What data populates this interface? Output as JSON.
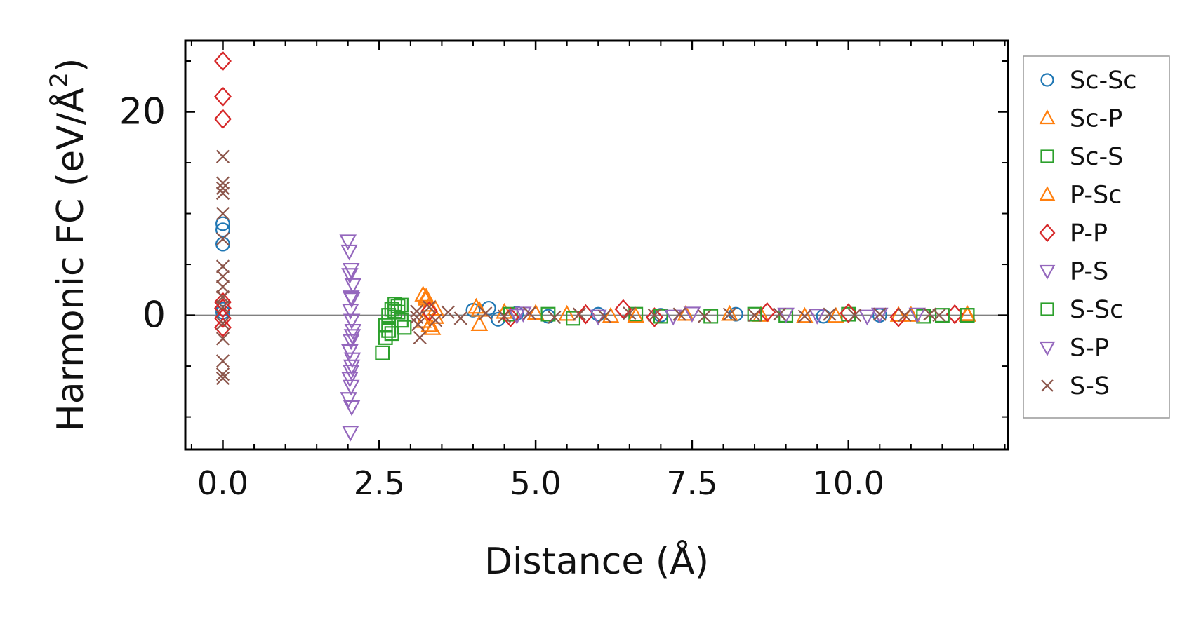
{
  "chart_data": {
    "type": "scatter",
    "title": "",
    "xlabel": "Distance (Å)",
    "ylabel_main": "Harmonic FC (eV/Å",
    "ylabel_sup": "2",
    "ylabel_end": ")",
    "xlim": [
      -0.6,
      12.55
    ],
    "ylim": [
      -13.2,
      27
    ],
    "xticks": [
      {
        "v": 0.0,
        "label": "0.0"
      },
      {
        "v": 2.5,
        "label": "2.5"
      },
      {
        "v": 5.0,
        "label": "5.0"
      },
      {
        "v": 7.5,
        "label": "7.5"
      },
      {
        "v": 10.0,
        "label": "10.0"
      }
    ],
    "xminor": [
      -0.5,
      0.5,
      1.0,
      1.5,
      2.0,
      3.0,
      3.5,
      4.0,
      4.5,
      5.5,
      6.0,
      6.5,
      7.0,
      8.0,
      8.5,
      9.0,
      9.5,
      10.5,
      11.0,
      11.5,
      12.0,
      12.5
    ],
    "yticks": [
      {
        "v": 0,
        "label": "0"
      },
      {
        "v": 20,
        "label": "20"
      }
    ],
    "yminor": [
      -10,
      -5,
      5,
      10,
      15,
      25
    ],
    "zero_line": true,
    "grid": false,
    "legend_position": "outside-right",
    "series": [
      {
        "name": "Sc-Sc",
        "marker": "circle",
        "color": "#1f77b4",
        "points": [
          [
            0,
            9.0
          ],
          [
            0,
            8.4
          ],
          [
            0,
            7.0
          ],
          [
            0,
            0.6
          ],
          [
            0,
            0.3
          ],
          [
            4.0,
            0.5
          ],
          [
            4.25,
            0.7
          ],
          [
            4.4,
            -0.4
          ],
          [
            4.7,
            0.2
          ],
          [
            5.2,
            -0.1
          ],
          [
            6.0,
            0.1
          ],
          [
            7.0,
            0.0
          ],
          [
            8.2,
            0.1
          ],
          [
            9.6,
            -0.1
          ],
          [
            10.5,
            0.0
          ]
        ]
      },
      {
        "name": "Sc-P",
        "marker": "triangle-up",
        "color": "#ff7f0e",
        "points": [
          [
            3.2,
            2.0
          ],
          [
            3.25,
            1.6
          ],
          [
            3.3,
            1.0
          ],
          [
            3.2,
            -0.6
          ],
          [
            3.35,
            -1.3
          ],
          [
            3.4,
            -0.2
          ],
          [
            4.1,
            0.5
          ],
          [
            4.1,
            -0.9
          ],
          [
            4.5,
            0.3
          ],
          [
            5.5,
            0.1
          ],
          [
            6.2,
            -0.1
          ],
          [
            7.4,
            0.1
          ],
          [
            8.6,
            0.0
          ],
          [
            9.8,
            -0.1
          ],
          [
            11.0,
            0.0
          ],
          [
            11.9,
            0.1
          ]
        ]
      },
      {
        "name": "Sc-S",
        "marker": "square",
        "color": "#2ca02c",
        "points": [
          [
            2.55,
            -3.7
          ],
          [
            2.6,
            -2.2
          ],
          [
            2.6,
            -1.0
          ],
          [
            2.65,
            0.0
          ],
          [
            2.7,
            0.6
          ],
          [
            2.75,
            1.1
          ],
          [
            2.8,
            0.9
          ],
          [
            2.85,
            -0.5
          ],
          [
            2.9,
            -1.2
          ],
          [
            2.7,
            -1.8
          ],
          [
            2.8,
            0.3
          ],
          [
            4.6,
            0.1
          ],
          [
            5.6,
            -0.3
          ],
          [
            6.6,
            0.1
          ],
          [
            7.8,
            -0.1
          ],
          [
            9.0,
            0.0
          ],
          [
            10.0,
            0.1
          ],
          [
            11.2,
            -0.1
          ],
          [
            11.9,
            0.0
          ]
        ]
      },
      {
        "name": "P-Sc",
        "marker": "triangle-up",
        "color": "#ff7f0e",
        "points": [
          [
            3.25,
            1.8
          ],
          [
            3.3,
            -1.0
          ],
          [
            3.4,
            0.6
          ],
          [
            4.05,
            0.8
          ],
          [
            5.0,
            0.2
          ],
          [
            6.6,
            -0.1
          ],
          [
            8.1,
            0.1
          ],
          [
            9.3,
            -0.1
          ],
          [
            10.8,
            0.0
          ],
          [
            11.9,
            0.0
          ]
        ]
      },
      {
        "name": "P-P",
        "marker": "diamond",
        "color": "#d62728",
        "points": [
          [
            0,
            25.0
          ],
          [
            0,
            21.5
          ],
          [
            0,
            19.3
          ],
          [
            0,
            1.3
          ],
          [
            0,
            0.7
          ],
          [
            0,
            -0.3
          ],
          [
            0,
            -1.2
          ],
          [
            3.3,
            0.4
          ],
          [
            4.6,
            -0.2
          ],
          [
            5.8,
            0.1
          ],
          [
            6.4,
            0.6
          ],
          [
            6.9,
            -0.2
          ],
          [
            8.7,
            0.3
          ],
          [
            10.0,
            0.2
          ],
          [
            10.8,
            -0.2
          ],
          [
            11.7,
            0.1
          ]
        ]
      },
      {
        "name": "P-S",
        "marker": "triangle-down",
        "color": "#9467bd",
        "points": [
          [
            2.0,
            7.3
          ],
          [
            2.02,
            6.3
          ],
          [
            2.05,
            4.5
          ],
          [
            2.08,
            3.0
          ],
          [
            2.06,
            1.6
          ],
          [
            2.04,
            0.5
          ],
          [
            2.06,
            -0.5
          ],
          [
            2.08,
            -1.5
          ],
          [
            2.05,
            -2.5
          ],
          [
            2.03,
            -3.5
          ],
          [
            2.07,
            -4.3
          ],
          [
            2.06,
            -5.0
          ],
          [
            2.03,
            -6.2
          ],
          [
            2.05,
            -7.0
          ],
          [
            2.01,
            -8.2
          ],
          [
            2.06,
            -9.0
          ],
          [
            2.04,
            -11.5
          ],
          [
            4.7,
            0.0
          ],
          [
            6.0,
            -0.1
          ],
          [
            7.5,
            0.2
          ],
          [
            9.0,
            0.1
          ],
          [
            10.3,
            -0.1
          ],
          [
            11.1,
            0.1
          ]
        ]
      },
      {
        "name": "S-Sc",
        "marker": "square",
        "color": "#2ca02c",
        "points": [
          [
            2.65,
            -1.5
          ],
          [
            2.75,
            0.4
          ],
          [
            2.85,
            1.0
          ],
          [
            5.2,
            0.1
          ],
          [
            7.0,
            -0.1
          ],
          [
            8.5,
            0.1
          ],
          [
            11.5,
            0.0
          ],
          [
            11.9,
            0.0
          ]
        ]
      },
      {
        "name": "S-P",
        "marker": "triangle-down",
        "color": "#9467bd",
        "points": [
          [
            2.03,
            4.0
          ],
          [
            2.05,
            1.8
          ],
          [
            2.07,
            -2.0
          ],
          [
            2.05,
            -5.5
          ],
          [
            4.8,
            0.2
          ],
          [
            7.2,
            -0.1
          ],
          [
            9.5,
            0.0
          ],
          [
            10.5,
            0.1
          ]
        ]
      },
      {
        "name": "S-S",
        "marker": "x",
        "color": "#8c564b",
        "points": [
          [
            0,
            15.6
          ],
          [
            0,
            13.0
          ],
          [
            0,
            12.5
          ],
          [
            0,
            12.0
          ],
          [
            0,
            10.0
          ],
          [
            0,
            7.5
          ],
          [
            0,
            4.8
          ],
          [
            0,
            3.8
          ],
          [
            0,
            2.8
          ],
          [
            0,
            1.8
          ],
          [
            0,
            0.8
          ],
          [
            0,
            -0.8
          ],
          [
            0,
            -2.3
          ],
          [
            0,
            -4.5
          ],
          [
            0,
            -5.8
          ],
          [
            0,
            -6.2
          ],
          [
            3.1,
            0.4
          ],
          [
            3.1,
            -0.2
          ],
          [
            3.12,
            -0.9
          ],
          [
            3.15,
            -2.2
          ],
          [
            3.3,
            0.8
          ],
          [
            3.4,
            -0.5
          ],
          [
            3.6,
            0.3
          ],
          [
            3.8,
            -0.3
          ],
          [
            4.2,
            0.2
          ],
          [
            4.5,
            -0.1
          ],
          [
            4.9,
            0.2
          ],
          [
            5.3,
            -0.2
          ],
          [
            5.7,
            0.1
          ],
          [
            6.1,
            -0.1
          ],
          [
            6.5,
            0.2
          ],
          [
            6.9,
            0.0
          ],
          [
            7.3,
            0.1
          ],
          [
            7.7,
            -0.1
          ],
          [
            8.1,
            0.1
          ],
          [
            8.5,
            0.0
          ],
          [
            8.9,
            0.1
          ],
          [
            9.3,
            -0.1
          ],
          [
            9.7,
            0.1
          ],
          [
            10.1,
            0.0
          ],
          [
            10.5,
            0.1
          ],
          [
            10.9,
            0.0
          ],
          [
            11.3,
            0.1
          ],
          [
            11.45,
            0.0
          ]
        ]
      }
    ]
  }
}
